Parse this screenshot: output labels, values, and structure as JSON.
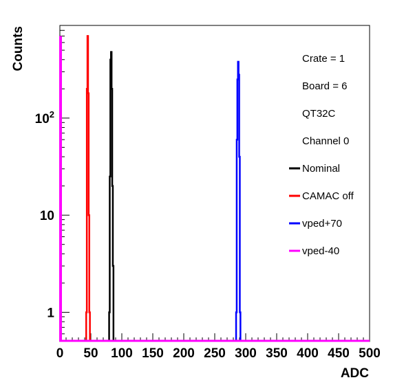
{
  "chart_data": {
    "type": "line",
    "xlabel": "ADC",
    "ylabel": "Counts",
    "xlim": [
      0,
      500
    ],
    "ylim": [
      0.5,
      900
    ],
    "yscale": "log",
    "x_ticks": [
      0,
      50,
      100,
      150,
      200,
      250,
      300,
      350,
      400,
      450,
      500
    ],
    "y_ticks": [
      {
        "value": 1,
        "label": "1"
      },
      {
        "value": 10,
        "label": "10"
      },
      {
        "value": 100,
        "label": "10",
        "sup": "2"
      }
    ],
    "info_lines": [
      "Crate = 1",
      "Board = 6",
      "QT32C",
      "Channel 0"
    ],
    "series": [
      {
        "name": "Nominal",
        "color": "#000000",
        "x": [
          80,
          81,
          82,
          83,
          84,
          85,
          86
        ],
        "y": [
          1,
          25,
          400,
          480,
          200,
          20,
          3
        ]
      },
      {
        "name": "CAMAC off",
        "color": "#ff0000",
        "x": [
          43,
          44,
          45,
          46,
          47,
          48
        ],
        "y": [
          1,
          200,
          700,
          180,
          10,
          1
        ]
      },
      {
        "name": "vped+70",
        "color": "#0000ff",
        "x": [
          285,
          286,
          287,
          288,
          289,
          290,
          291
        ],
        "y": [
          1,
          60,
          250,
          380,
          280,
          40,
          1
        ]
      },
      {
        "name": "vped-40",
        "color": "#ff00ff",
        "x": [
          0
        ],
        "y": [
          700
        ]
      }
    ]
  }
}
